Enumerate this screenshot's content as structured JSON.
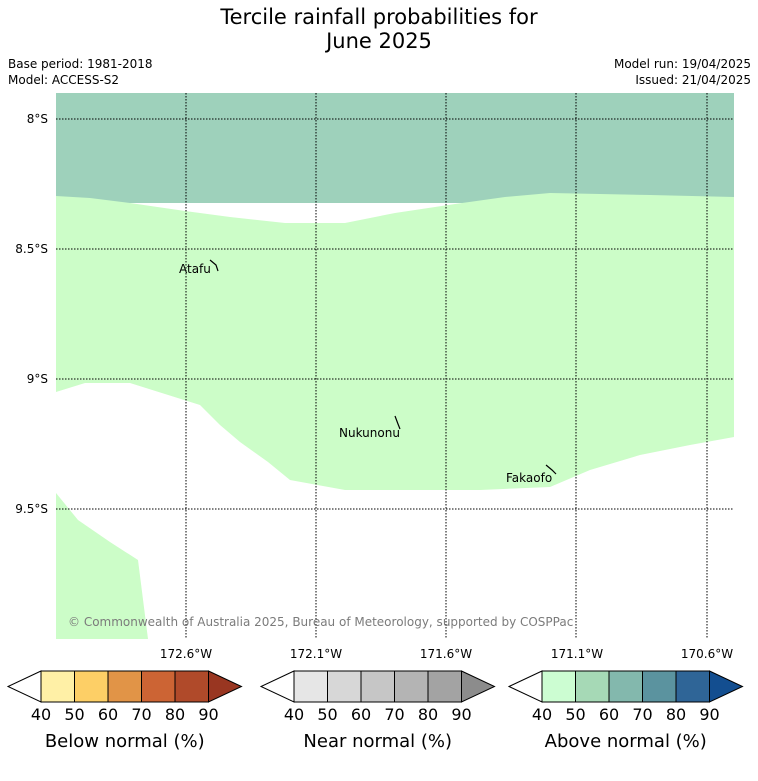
{
  "title": {
    "line1": "Tercile rainfall probabilities for",
    "line2": "June 2025"
  },
  "meta": {
    "base_period": "Base period: 1981-2018",
    "model": "Model: ACCESS-S2",
    "model_run": "Model run: 19/04/2025",
    "issued": "Issued: 21/04/2025"
  },
  "map": {
    "lat_labels": [
      "8°S",
      "8.5°S",
      "9°S",
      "9.5°S"
    ],
    "lon_labels": [
      "172.6°W",
      "172.1°W",
      "171.6°W",
      "171.1°W",
      "170.6°W"
    ],
    "places": [
      "Atafu",
      "Nukunonu",
      "Fakaofo"
    ],
    "copyright": "© Commonwealth of Australia 2025, Bureau of Meteorology, supported by COSPPac",
    "region_colors": {
      "above_50_60": "#9ed1bb",
      "above_40_50": "#ccfdc8"
    }
  },
  "colorbars": [
    {
      "label": "Below normal (%)",
      "ticks": [
        "40",
        "50",
        "60",
        "70",
        "80",
        "90"
      ],
      "colors": [
        "#fff0a6",
        "#fdcf66",
        "#e19447",
        "#cc6434",
        "#b04a2a",
        "#993621"
      ]
    },
    {
      "label": "Near normal (%)",
      "ticks": [
        "40",
        "50",
        "60",
        "70",
        "80",
        "90"
      ],
      "colors": [
        "#e6e6e6",
        "#d7d7d7",
        "#c6c6c6",
        "#b4b4b4",
        "#a3a3a3",
        "#8c8c8c"
      ]
    },
    {
      "label": "Above normal (%)",
      "ticks": [
        "40",
        "50",
        "60",
        "70",
        "80",
        "90"
      ],
      "colors": [
        "#ccfdd2",
        "#a6d9b6",
        "#83b8ad",
        "#5b939f",
        "#2f6597",
        "#134e90"
      ]
    }
  ]
}
